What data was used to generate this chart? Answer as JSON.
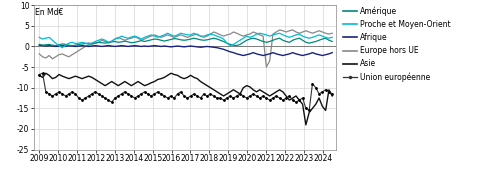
{
  "ylabel": "En Md€",
  "ylim": [
    -25,
    10
  ],
  "yticks": [
    -25,
    -20,
    -15,
    -10,
    -5,
    0,
    5,
    10
  ],
  "xtick_labels": [
    "2009",
    "2010",
    "2011",
    "2012",
    "2013",
    "2014",
    "2015",
    "2016",
    "2017",
    "2018",
    "2019",
    "2020",
    "2021",
    "2022",
    "2023",
    "2024"
  ],
  "legend": [
    "Amérique",
    "Proche et Moyen-Orient",
    "Afrique",
    "Europe hors UE",
    "Asie",
    "Union européenne"
  ],
  "colors_main": [
    "#00897b",
    "#00bcd4",
    "#1a237e",
    "#888888",
    "#111111",
    "#111111"
  ],
  "background_color": "#ffffff",
  "grid_color": "#cccccc",
  "amerique": [
    0.5,
    0.3,
    0.4,
    0.5,
    0.3,
    0.2,
    0.4,
    0.6,
    0.5,
    0.3,
    0.2,
    0.3,
    0.5,
    0.6,
    0.7,
    0.8,
    0.7,
    0.8,
    1.0,
    0.9,
    0.8,
    1.0,
    1.1,
    1.2,
    1.0,
    1.1,
    1.3,
    1.1,
    0.9,
    1.0,
    1.2,
    1.4,
    1.2,
    1.4,
    1.6,
    1.8,
    1.7,
    1.5,
    1.3,
    1.5,
    1.7,
    1.9,
    1.8,
    1.6,
    1.5,
    1.6,
    1.8,
    2.0,
    1.8,
    1.6,
    1.5,
    1.6,
    1.8,
    2.0,
    1.8,
    1.5,
    1.2,
    0.8,
    0.5,
    0.3,
    0.2,
    0.5,
    1.0,
    1.5,
    1.8,
    2.0,
    1.8,
    1.5,
    1.2,
    1.0,
    1.2,
    1.5,
    1.8,
    2.0,
    1.5,
    1.2,
    1.0,
    1.5,
    1.8,
    2.0,
    1.5,
    1.0,
    0.8,
    1.0,
    1.2,
    1.5,
    1.8,
    2.0,
    1.5,
    1.2
  ],
  "pmo": [
    2.2,
    1.8,
    2.0,
    2.2,
    1.5,
    0.8,
    0.2,
    -0.3,
    0.3,
    0.8,
    1.0,
    0.7,
    0.8,
    1.0,
    0.8,
    0.5,
    0.8,
    1.2,
    1.5,
    1.8,
    1.5,
    1.0,
    1.3,
    1.8,
    2.0,
    2.5,
    2.2,
    2.0,
    2.3,
    2.5,
    2.2,
    1.8,
    2.2,
    2.5,
    2.8,
    2.5,
    2.2,
    2.5,
    2.8,
    3.2,
    2.8,
    2.5,
    2.8,
    3.2,
    3.0,
    2.8,
    2.8,
    3.2,
    2.8,
    2.5,
    2.5,
    2.8,
    3.0,
    2.8,
    2.5,
    2.2,
    1.8,
    0.8,
    0.2,
    0.5,
    1.0,
    1.5,
    2.0,
    2.5,
    2.2,
    2.5,
    3.0,
    3.2,
    3.0,
    2.8,
    2.5,
    2.8,
    3.0,
    3.2,
    2.8,
    2.5,
    2.2,
    2.5,
    2.8,
    3.0,
    2.5,
    2.2,
    2.0,
    2.2,
    2.5,
    2.8,
    2.5,
    2.2,
    2.0,
    2.2
  ],
  "afrique": [
    0.3,
    0.2,
    0.1,
    0.2,
    0.1,
    0.0,
    0.1,
    0.2,
    0.1,
    0.2,
    0.1,
    0.0,
    0.1,
    0.2,
    0.1,
    0.0,
    0.1,
    0.2,
    0.1,
    0.0,
    0.1,
    0.2,
    0.1,
    0.0,
    0.1,
    0.2,
    0.1,
    0.0,
    0.1,
    0.2,
    0.1,
    0.0,
    0.1,
    0.0,
    0.1,
    0.2,
    0.1,
    0.0,
    0.1,
    0.0,
    -0.1,
    0.0,
    0.1,
    0.0,
    -0.1,
    0.0,
    0.1,
    0.0,
    -0.1,
    -0.2,
    -0.1,
    0.0,
    -0.1,
    -0.2,
    -0.3,
    -0.5,
    -0.7,
    -1.0,
    -1.3,
    -1.5,
    -1.8,
    -2.0,
    -2.2,
    -2.0,
    -1.8,
    -1.5,
    -1.8,
    -2.0,
    -2.2,
    -2.0,
    -1.8,
    -1.5,
    -1.8,
    -2.0,
    -2.2,
    -2.0,
    -1.8,
    -1.5,
    -1.8,
    -2.0,
    -2.2,
    -2.0,
    -1.8,
    -1.5,
    -1.8,
    -2.0,
    -2.2,
    -2.0,
    -1.8,
    -1.5
  ],
  "europe_hors_ue": [
    -1.8,
    -2.5,
    -2.8,
    -2.2,
    -3.0,
    -2.5,
    -2.0,
    -1.8,
    -2.2,
    -2.5,
    -2.0,
    -1.5,
    -1.0,
    -0.5,
    0.0,
    0.3,
    0.5,
    0.8,
    1.0,
    1.5,
    1.2,
    0.8,
    1.2,
    1.8,
    2.2,
    1.8,
    1.5,
    1.8,
    2.0,
    2.3,
    2.0,
    1.5,
    1.8,
    2.2,
    2.5,
    2.8,
    2.5,
    2.2,
    2.5,
    2.8,
    2.5,
    2.2,
    2.5,
    2.8,
    2.5,
    2.2,
    2.5,
    2.8,
    3.0,
    2.5,
    2.2,
    2.5,
    3.0,
    3.5,
    3.2,
    2.8,
    2.5,
    2.8,
    3.0,
    3.5,
    3.2,
    2.8,
    2.5,
    2.8,
    3.0,
    3.5,
    3.2,
    2.8,
    2.5,
    -5.0,
    -3.5,
    3.0,
    3.5,
    4.0,
    3.8,
    3.5,
    3.8,
    4.0,
    3.5,
    3.2,
    3.5,
    3.8,
    3.5,
    3.2,
    3.5,
    3.8,
    3.5,
    3.2,
    3.0,
    3.2
  ],
  "asie": [
    -7.0,
    -7.5,
    -6.5,
    -7.0,
    -7.8,
    -7.5,
    -6.8,
    -7.2,
    -7.5,
    -7.8,
    -7.5,
    -7.2,
    -7.5,
    -7.8,
    -7.5,
    -7.2,
    -7.5,
    -8.0,
    -8.5,
    -9.0,
    -9.5,
    -9.0,
    -8.5,
    -9.0,
    -9.5,
    -9.0,
    -8.5,
    -9.0,
    -9.5,
    -9.0,
    -8.5,
    -9.0,
    -9.5,
    -9.2,
    -8.8,
    -8.5,
    -8.0,
    -7.8,
    -7.5,
    -7.0,
    -6.5,
    -6.8,
    -7.0,
    -7.5,
    -7.8,
    -7.5,
    -7.0,
    -7.5,
    -7.8,
    -8.5,
    -9.0,
    -9.5,
    -10.0,
    -10.5,
    -11.0,
    -11.5,
    -12.0,
    -11.5,
    -11.0,
    -10.5,
    -11.0,
    -11.5,
    -10.0,
    -9.5,
    -9.8,
    -10.5,
    -11.0,
    -10.5,
    -11.0,
    -11.5,
    -12.0,
    -11.5,
    -11.0,
    -10.5,
    -11.0,
    -12.0,
    -13.0,
    -12.5,
    -12.0,
    -13.0,
    -14.0,
    -19.0,
    -16.0,
    -15.0,
    -14.0,
    -12.5,
    -14.5,
    -15.5,
    -10.5,
    -12.0
  ],
  "ue": [
    -6.8,
    -6.5,
    -11.0,
    -11.5,
    -12.0,
    -11.5,
    -11.0,
    -11.5,
    -12.0,
    -11.5,
    -11.0,
    -11.5,
    -12.5,
    -13.0,
    -12.5,
    -12.0,
    -11.5,
    -11.0,
    -11.5,
    -12.0,
    -12.5,
    -13.0,
    -13.5,
    -12.5,
    -12.0,
    -11.5,
    -11.0,
    -11.5,
    -12.0,
    -12.5,
    -12.0,
    -11.5,
    -11.0,
    -11.5,
    -12.0,
    -11.5,
    -11.0,
    -11.5,
    -12.0,
    -12.5,
    -12.0,
    -12.5,
    -11.5,
    -11.0,
    -12.0,
    -12.5,
    -12.0,
    -11.5,
    -12.0,
    -12.5,
    -11.5,
    -12.0,
    -11.5,
    -12.0,
    -12.5,
    -12.5,
    -13.0,
    -12.5,
    -12.0,
    -12.5,
    -12.0,
    -11.5,
    -12.0,
    -12.5,
    -12.0,
    -11.5,
    -12.0,
    -12.5,
    -12.0,
    -12.5,
    -13.0,
    -12.5,
    -12.0,
    -12.5,
    -13.0,
    -12.5,
    -12.0,
    -13.0,
    -13.5,
    -13.0,
    -12.5,
    -15.0,
    -15.5,
    -9.0,
    -10.0,
    -11.5,
    -11.0,
    -10.5,
    -11.0,
    -11.5
  ]
}
